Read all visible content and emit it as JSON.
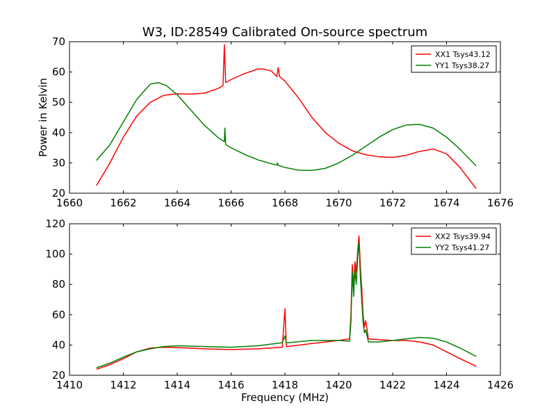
{
  "chart_data": [
    {
      "type": "line",
      "title": "W3, ID:28549 Calibrated On-source spectrum",
      "xlabel": "",
      "ylabel": "Power in Kelvin",
      "xlim": [
        1660,
        1676
      ],
      "ylim": [
        20,
        70
      ],
      "xticks": [
        "1660",
        "1662",
        "1664",
        "1666",
        "1668",
        "1670",
        "1672",
        "1674",
        "1676"
      ],
      "yticks": [
        "20",
        "30",
        "40",
        "50",
        "60",
        "70"
      ],
      "grid": false,
      "legend_position": "top-right",
      "series": [
        {
          "name": "XX1 Tsys43.12",
          "color": "#ff0000",
          "x": [
            1661.0,
            1661.5,
            1662.0,
            1662.5,
            1663.0,
            1663.5,
            1664.0,
            1664.5,
            1665.0,
            1665.5,
            1665.7,
            1665.75,
            1665.8,
            1666.0,
            1666.5,
            1667.0,
            1667.2,
            1667.5,
            1667.7,
            1667.75,
            1667.8,
            1668.0,
            1668.5,
            1669.0,
            1669.5,
            1670.0,
            1670.5,
            1671.0,
            1671.5,
            1672.0,
            1672.5,
            1673.0,
            1673.5,
            1674.0,
            1674.5,
            1675.1
          ],
          "y": [
            22.5,
            30.0,
            38.5,
            45.5,
            50.0,
            52.3,
            52.8,
            52.7,
            53.0,
            54.5,
            55.5,
            69.0,
            56.5,
            57.5,
            59.5,
            61.0,
            61.0,
            60.3,
            58.5,
            61.5,
            58.5,
            57.0,
            51.5,
            45.0,
            40.0,
            36.5,
            34.0,
            32.7,
            32.0,
            31.8,
            32.5,
            33.8,
            34.6,
            33.0,
            28.5,
            21.5
          ]
        },
        {
          "name": "YY1 Tsys38.27",
          "color": "#007f00",
          "x": [
            1661.0,
            1661.5,
            1662.0,
            1662.5,
            1663.0,
            1663.3,
            1663.6,
            1664.0,
            1664.5,
            1665.0,
            1665.5,
            1665.75,
            1665.77,
            1665.8,
            1666.0,
            1666.5,
            1667.0,
            1667.5,
            1667.7,
            1667.72,
            1667.75,
            1668.0,
            1668.5,
            1669.0,
            1669.5,
            1670.0,
            1670.5,
            1671.0,
            1671.5,
            1672.0,
            1672.5,
            1673.0,
            1673.5,
            1674.0,
            1674.5,
            1675.1
          ],
          "y": [
            30.8,
            36.0,
            43.5,
            51.0,
            56.0,
            56.5,
            55.5,
            52.5,
            47.5,
            42.5,
            38.5,
            37.0,
            41.5,
            36.0,
            35.0,
            32.8,
            31.0,
            29.7,
            29.3,
            30.0,
            29.2,
            28.5,
            27.6,
            27.5,
            28.2,
            30.0,
            32.5,
            35.5,
            38.5,
            41.0,
            42.5,
            42.7,
            41.5,
            38.5,
            34.5,
            29.0
          ]
        }
      ]
    },
    {
      "type": "line",
      "title": "",
      "xlabel": "Frequency (MHz)",
      "ylabel": "",
      "xlim": [
        1410,
        1426
      ],
      "ylim": [
        20,
        120
      ],
      "xticks": [
        "1410",
        "1412",
        "1414",
        "1416",
        "1418",
        "1420",
        "1422",
        "1424",
        "1426"
      ],
      "yticks": [
        "20",
        "40",
        "60",
        "80",
        "100",
        "120"
      ],
      "grid": false,
      "legend_position": "top-right",
      "series": [
        {
          "name": "XX2 Tsys39.94",
          "color": "#ff0000",
          "x": [
            1411.0,
            1411.5,
            1412.0,
            1412.5,
            1413.0,
            1413.5,
            1414.0,
            1415.0,
            1416.0,
            1417.0,
            1417.9,
            1418.0,
            1418.05,
            1418.1,
            1419.0,
            1420.0,
            1420.4,
            1420.45,
            1420.5,
            1420.55,
            1420.6,
            1420.65,
            1420.7,
            1420.75,
            1420.8,
            1420.85,
            1420.9,
            1420.95,
            1421.0,
            1421.1,
            1421.5,
            1422.0,
            1422.5,
            1423.0,
            1423.5,
            1424.0,
            1424.5,
            1425.1
          ],
          "y": [
            24.0,
            27.0,
            31.0,
            35.5,
            38.0,
            38.5,
            38.3,
            37.5,
            37.0,
            37.5,
            38.5,
            64.0,
            39.0,
            39.0,
            41.0,
            43.0,
            44.0,
            60.0,
            93.0,
            78.0,
            95.0,
            88.0,
            102.0,
            112.0,
            92.0,
            78.0,
            60.0,
            52.0,
            56.0,
            44.0,
            43.5,
            43.0,
            43.0,
            42.0,
            40.0,
            35.5,
            31.0,
            26.0
          ]
        },
        {
          "name": "YY2 Tsys41.27",
          "color": "#007f00",
          "x": [
            1411.0,
            1411.5,
            1412.0,
            1412.5,
            1413.0,
            1413.5,
            1414.0,
            1415.0,
            1416.0,
            1417.0,
            1417.9,
            1418.0,
            1418.05,
            1418.1,
            1419.0,
            1420.0,
            1420.4,
            1420.45,
            1420.5,
            1420.55,
            1420.6,
            1420.65,
            1420.7,
            1420.75,
            1420.8,
            1420.85,
            1420.9,
            1420.95,
            1421.0,
            1421.1,
            1421.5,
            1422.0,
            1422.5,
            1423.0,
            1423.5,
            1424.0,
            1424.5,
            1425.1
          ],
          "y": [
            25.0,
            28.0,
            32.0,
            35.5,
            37.5,
            39.0,
            39.5,
            39.0,
            38.5,
            39.5,
            41.5,
            46.0,
            41.5,
            41.5,
            43.0,
            43.0,
            42.5,
            55.0,
            88.0,
            72.0,
            90.0,
            80.0,
            98.0,
            108.0,
            85.0,
            70.0,
            55.0,
            48.0,
            50.0,
            42.0,
            42.0,
            43.0,
            44.0,
            45.0,
            44.5,
            42.0,
            38.0,
            32.5
          ]
        }
      ]
    }
  ]
}
